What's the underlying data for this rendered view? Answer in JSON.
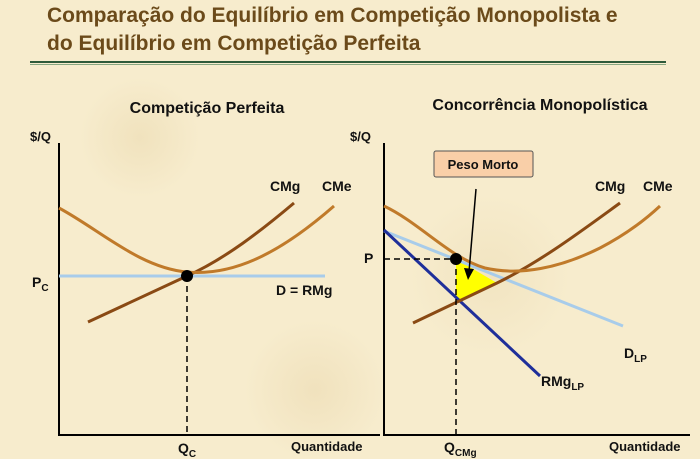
{
  "title": {
    "line1": "Comparação do Equilíbrio em Competição Monopolista e",
    "line2": "do Equilíbrio em Competição Perfeita"
  },
  "left_panel": {
    "heading": "Competição Perfeita",
    "y_axis_label": "$/Q",
    "x_axis_label": "Quantidade",
    "curve_cmg": "CMg",
    "curve_cme": "CMe",
    "demand_label": "D = RMg",
    "price_label_main": "P",
    "price_label_sub": "C",
    "qty_label_main": "Q",
    "qty_label_sub": "C"
  },
  "right_panel": {
    "heading": "Concorrência Monopolística",
    "y_axis_label": "$/Q",
    "x_axis_label": "Quantidade",
    "curve_cmg": "CMg",
    "curve_cme": "CMe",
    "price_label": "P",
    "deadweight_label": "Peso Morto",
    "demand_label_main": "D",
    "demand_label_sub": "LP",
    "mr_label_main": "RMg",
    "mr_label_sub": "LP",
    "qty_label_main": "Q",
    "qty_label_sub": "CMg"
  },
  "colors": {
    "title": "#6b4a1a",
    "cmg": "#8a4a14",
    "cme": "#c07a2a",
    "demand": "#a8ccea",
    "marginal_revenue": "#1f2f9a",
    "deadweight_fill": "#ffff00",
    "box_fill": "#f9cfa8"
  }
}
